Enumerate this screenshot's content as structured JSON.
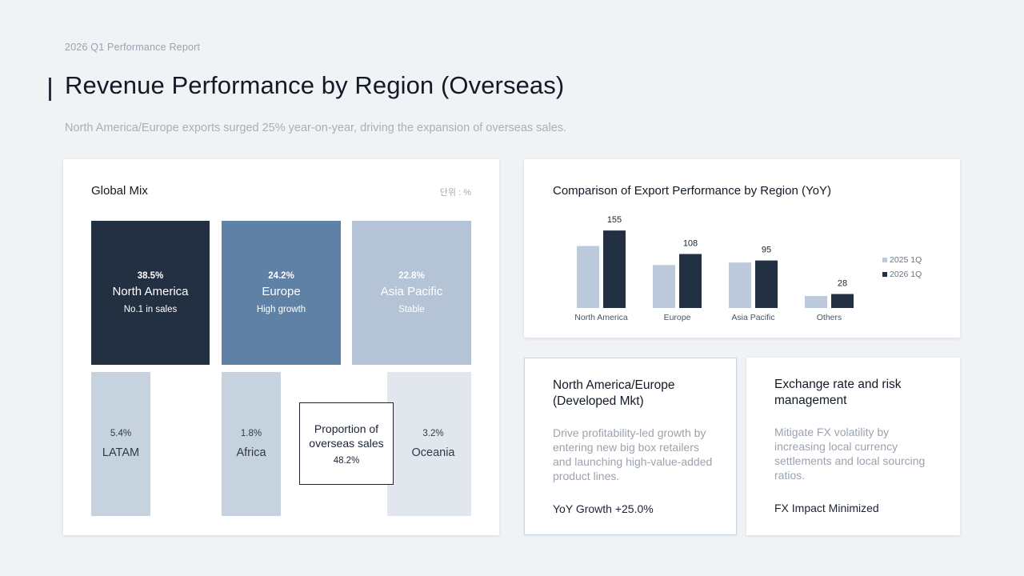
{
  "header": {
    "eyebrow": "2026 Q1 Performance Report",
    "title": "Revenue Performance by Region (Overseas)",
    "subtitle": "North America/Europe exports surged 25% year-on-year, driving the expansion of overseas sales."
  },
  "mix": {
    "title": "Global Mix",
    "unit": "단위 : %",
    "tiles": [
      {
        "pct": "38.5%",
        "name": "North America",
        "note": "No.1 in sales",
        "color": "#233042"
      },
      {
        "pct": "24.2%",
        "name": "Europe",
        "note": "High growth",
        "color": "#6081a6"
      },
      {
        "pct": "22.8%",
        "name": "Asia Pacific",
        "note": "Stable",
        "color": "#b4c3d5"
      },
      {
        "pct": "5.4%",
        "name": "LATAM",
        "color": "#c7d2df"
      },
      {
        "pct": "1.8%",
        "name": "Africa",
        "color": "#c7d2df"
      },
      {
        "pct": "3.2%",
        "name": "Oceania",
        "color": "#e2e7ee"
      }
    ],
    "overlay": {
      "label": "Proportion of overseas sales",
      "value": "48.2%"
    }
  },
  "chart": {
    "title": "Comparison of Export Performance by Region (YoY)",
    "legend_placement": "right"
  },
  "chart_data": {
    "type": "bar",
    "title": "Comparison of Export Performance by Region (YoY)",
    "categories": [
      "North America",
      "Europe",
      "Asia Pacific",
      "Others"
    ],
    "series": [
      {
        "name": "2025 1Q",
        "values": [
          124,
          86,
          91,
          24
        ],
        "color": "#bccadb",
        "labeled": false
      },
      {
        "name": "2026 1Q",
        "values": [
          155,
          108,
          95,
          28
        ],
        "color": "#233042",
        "labeled": true
      }
    ],
    "ylim": [
      0,
      160
    ],
    "grid": false,
    "legend": "right"
  },
  "cards": {
    "na": {
      "title": "North America/Europe (Developed Mkt)",
      "body": "Drive profitability-led growth by entering new big box retailers and launching high-value-added product lines.",
      "foot": "YoY Growth +25.0%"
    },
    "fx": {
      "title": "Exchange rate and risk management",
      "body": "Mitigate FX volatility by increasing local currency settlements and local sourcing ratios.",
      "foot": "FX Impact Minimized"
    }
  }
}
